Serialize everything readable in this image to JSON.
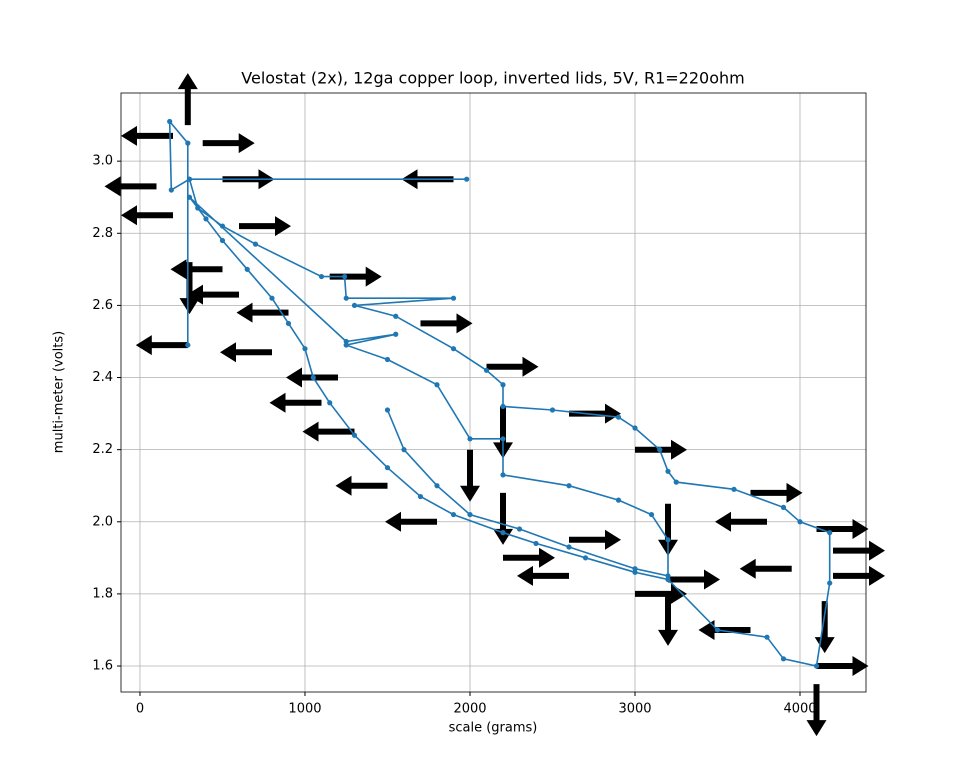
{
  "chart_data": {
    "type": "line",
    "title": "Velostat (2x), 12ga copper loop, inverted lids, 5V, R1=220ohm",
    "xlabel": "scale (grams)",
    "ylabel": "multi-meter (volts)",
    "xlim": [
      -115,
      4400
    ],
    "ylim": [
      1.528,
      3.189
    ],
    "xticks": [
      0,
      1000,
      2000,
      3000,
      4000
    ],
    "yticks": [
      {
        "value": 1.6,
        "label": "1.6"
      },
      {
        "value": 1.8,
        "label": "1.8"
      },
      {
        "value": 2.0,
        "label": "2.0"
      },
      {
        "value": 2.2,
        "label": "2.2"
      },
      {
        "value": 2.4,
        "label": "2.4"
      },
      {
        "value": 2.6,
        "label": "2.6"
      },
      {
        "value": 2.8,
        "label": "2.8"
      },
      {
        "value": 3.0,
        "label": "3.0"
      }
    ],
    "grid": true,
    "series": [
      {
        "color": "#1f77b4",
        "x": [
          290,
          290,
          180,
          190,
          300,
          1980,
          300,
          350,
          500,
          700,
          1100,
          1240,
          1250,
          1900,
          1300,
          1550,
          1900,
          2100,
          2200,
          2200,
          2500,
          2900,
          3000,
          3150,
          3200,
          3250,
          3600,
          3900,
          4000,
          4180,
          4180,
          4100,
          3900,
          3800,
          3500,
          3200,
          3000,
          2700,
          2400,
          2200,
          1900,
          1700,
          1500,
          1300,
          1150,
          1050,
          1000,
          900,
          800,
          650,
          500,
          400,
          300,
          1250,
          1550,
          1250,
          1500,
          1800,
          2000,
          2200,
          2200,
          2600,
          2900,
          3100,
          3200,
          3200,
          3000,
          2600,
          2300,
          2000,
          1800,
          1600,
          1500
        ],
        "y": [
          2.49,
          3.05,
          3.11,
          2.92,
          2.95,
          2.95,
          2.95,
          2.87,
          2.82,
          2.77,
          2.68,
          2.68,
          2.62,
          2.62,
          2.6,
          2.57,
          2.48,
          2.42,
          2.38,
          2.32,
          2.31,
          2.29,
          2.26,
          2.2,
          2.14,
          2.11,
          2.09,
          2.04,
          2.0,
          1.97,
          1.83,
          1.6,
          1.62,
          1.68,
          1.7,
          1.84,
          1.86,
          1.9,
          1.94,
          1.97,
          2.02,
          2.07,
          2.15,
          2.24,
          2.33,
          2.4,
          2.48,
          2.55,
          2.62,
          2.7,
          2.78,
          2.84,
          2.9,
          2.5,
          2.52,
          2.49,
          2.45,
          2.38,
          2.23,
          2.23,
          2.13,
          2.1,
          2.06,
          2.02,
          1.95,
          1.85,
          1.87,
          1.93,
          1.98,
          2.02,
          2.1,
          2.2,
          2.31
        ]
      }
    ],
    "arrows": {
      "color": "#000000",
      "x": [
        290,
        290,
        200,
        380,
        100,
        1900,
        500,
        300,
        200,
        600,
        500,
        1150,
        600,
        900,
        1700,
        2100,
        800,
        1200,
        2200,
        2600,
        1100,
        3000,
        2000,
        1300,
        2200,
        3200,
        3700,
        1500,
        4100,
        3800,
        4200,
        4200,
        3950,
        4150,
        3200,
        2600,
        1800,
        2600,
        3000,
        3700,
        4100,
        4100,
        3200,
        2200
      ],
      "y": [
        2.49,
        3.1,
        3.07,
        3.05,
        2.93,
        2.95,
        2.95,
        2.72,
        2.85,
        2.82,
        2.7,
        2.68,
        2.63,
        2.58,
        2.55,
        2.43,
        2.47,
        2.4,
        2.32,
        2.3,
        2.33,
        2.2,
        2.2,
        2.25,
        2.08,
        2.05,
        2.08,
        2.1,
        1.98,
        2.0,
        1.92,
        1.85,
        1.87,
        1.78,
        1.84,
        1.95,
        2.0,
        1.85,
        1.8,
        1.7,
        1.6,
        1.55,
        1.8,
        1.9
      ],
      "u": [
        -1,
        0,
        -1,
        1,
        -1,
        -1,
        1,
        0,
        -1,
        1,
        -1,
        1,
        -1,
        -1,
        1,
        1,
        -1,
        -1,
        0,
        1,
        -1,
        1,
        0,
        -1,
        0,
        0,
        1,
        -1,
        1,
        -1,
        1,
        1,
        -1,
        0,
        1,
        1,
        -1,
        -1,
        1,
        -1,
        1,
        0,
        0,
        1
      ],
      "v": [
        0,
        1,
        0,
        0,
        0,
        0,
        0,
        -1,
        0,
        0,
        0,
        0,
        0,
        0,
        0,
        0,
        0,
        0,
        -1,
        0,
        0,
        0,
        -1,
        0,
        -1,
        -1,
        0,
        0,
        0,
        0,
        0,
        0,
        0,
        -1,
        0,
        0,
        0,
        0,
        0,
        0,
        0,
        -1,
        -1,
        0
      ]
    }
  }
}
